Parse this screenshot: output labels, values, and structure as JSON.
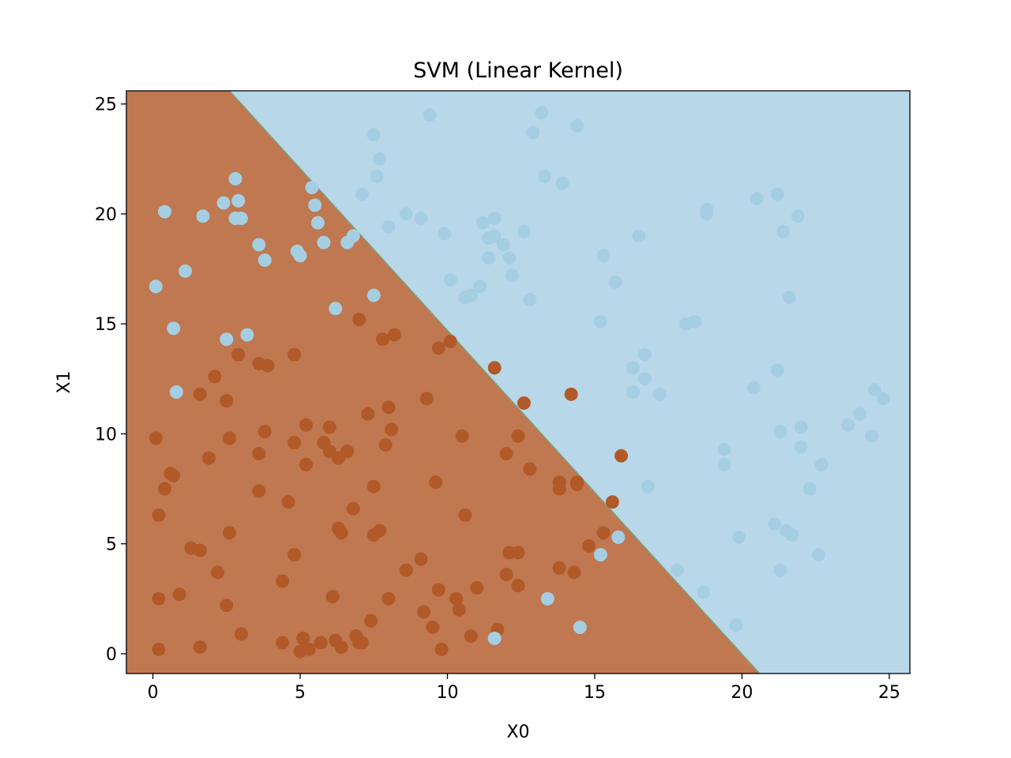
{
  "chart_data": {
    "type": "scatter",
    "title": "SVM (Linear Kernel)",
    "xlabel": "X0",
    "ylabel": "X1",
    "xlim": [
      -0.9,
      25.7
    ],
    "ylim": [
      -0.9,
      25.6
    ],
    "xticks": [
      0,
      5,
      10,
      15,
      20,
      25
    ],
    "yticks": [
      0,
      5,
      10,
      15,
      20,
      25
    ],
    "decision_boundary": {
      "points": [
        [
          2.6,
          25.6
        ],
        [
          20.6,
          -0.9
        ]
      ]
    },
    "regions": {
      "class0_color": "#bf7850",
      "class1_color": "#b8d8ea",
      "boundary_color": "#7fa07a"
    },
    "point_colors": {
      "class0": "#b15928",
      "class1": "#a6cee3"
    },
    "series": [
      {
        "class": 0,
        "points": [
          [
            0.1,
            9.8
          ],
          [
            0.2,
            6.3
          ],
          [
            0.2,
            2.5
          ],
          [
            0.2,
            0.2
          ],
          [
            0.4,
            7.5
          ],
          [
            0.6,
            8.2
          ],
          [
            0.7,
            8.1
          ],
          [
            0.9,
            2.7
          ],
          [
            1.3,
            4.8
          ],
          [
            1.6,
            4.7
          ],
          [
            1.6,
            0.3
          ],
          [
            1.6,
            11.8
          ],
          [
            1.9,
            8.9
          ],
          [
            2.1,
            12.6
          ],
          [
            2.2,
            3.7
          ],
          [
            2.5,
            2.2
          ],
          [
            2.5,
            11.5
          ],
          [
            2.6,
            9.8
          ],
          [
            2.6,
            5.5
          ],
          [
            2.9,
            13.6
          ],
          [
            3.0,
            0.9
          ],
          [
            3.6,
            13.2
          ],
          [
            3.6,
            9.1
          ],
          [
            3.6,
            7.4
          ],
          [
            3.9,
            13.1
          ],
          [
            3.8,
            10.1
          ],
          [
            4.4,
            3.3
          ],
          [
            4.4,
            0.5
          ],
          [
            4.6,
            6.9
          ],
          [
            4.8,
            9.6
          ],
          [
            4.8,
            4.5
          ],
          [
            4.8,
            13.6
          ],
          [
            5.0,
            0.1
          ],
          [
            5.1,
            0.7
          ],
          [
            5.2,
            10.4
          ],
          [
            5.2,
            8.6
          ],
          [
            5.3,
            0.2
          ],
          [
            5.7,
            0.5
          ],
          [
            5.8,
            9.6
          ],
          [
            6.0,
            10.3
          ],
          [
            6.0,
            9.2
          ],
          [
            6.1,
            2.6
          ],
          [
            6.2,
            0.6
          ],
          [
            6.3,
            5.7
          ],
          [
            6.3,
            8.9
          ],
          [
            6.4,
            5.5
          ],
          [
            6.4,
            0.3
          ],
          [
            6.6,
            9.2
          ],
          [
            6.8,
            6.6
          ],
          [
            6.9,
            0.8
          ],
          [
            7.0,
            15.2
          ],
          [
            7.0,
            0.5
          ],
          [
            7.1,
            0.5
          ],
          [
            7.3,
            10.9
          ],
          [
            7.4,
            1.5
          ],
          [
            7.5,
            7.6
          ],
          [
            7.5,
            5.4
          ],
          [
            7.7,
            5.6
          ],
          [
            7.8,
            14.3
          ],
          [
            7.9,
            9.5
          ],
          [
            8.0,
            2.5
          ],
          [
            8.0,
            11.2
          ],
          [
            8.1,
            10.2
          ],
          [
            8.2,
            14.5
          ],
          [
            8.6,
            3.8
          ],
          [
            9.1,
            4.3
          ],
          [
            9.2,
            1.9
          ],
          [
            9.3,
            11.6
          ],
          [
            9.5,
            1.2
          ],
          [
            9.6,
            7.8
          ],
          [
            9.7,
            2.9
          ],
          [
            9.7,
            13.9
          ],
          [
            9.8,
            0.2
          ],
          [
            10.1,
            14.2
          ],
          [
            10.3,
            2.5
          ],
          [
            10.4,
            2.0
          ],
          [
            10.5,
            9.9
          ],
          [
            10.6,
            6.3
          ],
          [
            10.8,
            0.8
          ],
          [
            11.0,
            3.0
          ],
          [
            11.6,
            13.0
          ],
          [
            11.7,
            1.1
          ],
          [
            12.0,
            9.1
          ],
          [
            12.0,
            3.6
          ],
          [
            12.1,
            4.6
          ],
          [
            12.4,
            4.6
          ],
          [
            12.4,
            9.9
          ],
          [
            12.4,
            3.1
          ],
          [
            12.6,
            11.4
          ],
          [
            12.8,
            8.4
          ],
          [
            13.8,
            7.8
          ],
          [
            13.8,
            7.5
          ],
          [
            13.8,
            3.9
          ],
          [
            14.2,
            11.8
          ],
          [
            14.3,
            3.7
          ],
          [
            14.4,
            7.8
          ],
          [
            14.4,
            7.7
          ],
          [
            14.8,
            4.9
          ],
          [
            15.3,
            5.5
          ],
          [
            15.6,
            6.9
          ],
          [
            15.9,
            9.0
          ]
        ]
      },
      {
        "class": 1,
        "points": [
          [
            0.1,
            16.7
          ],
          [
            0.4,
            20.1
          ],
          [
            0.7,
            14.8
          ],
          [
            0.8,
            11.9
          ],
          [
            1.1,
            17.4
          ],
          [
            1.7,
            19.9
          ],
          [
            2.4,
            20.5
          ],
          [
            2.5,
            14.3
          ],
          [
            2.8,
            21.6
          ],
          [
            2.8,
            19.8
          ],
          [
            2.9,
            20.6
          ],
          [
            3.0,
            19.8
          ],
          [
            3.2,
            14.5
          ],
          [
            3.6,
            18.6
          ],
          [
            3.8,
            17.9
          ],
          [
            4.9,
            18.3
          ],
          [
            5.0,
            18.1
          ],
          [
            5.4,
            21.2
          ],
          [
            5.5,
            20.4
          ],
          [
            5.6,
            19.6
          ],
          [
            5.8,
            18.7
          ],
          [
            6.2,
            15.7
          ],
          [
            6.6,
            18.7
          ],
          [
            6.8,
            19.0
          ],
          [
            7.1,
            20.9
          ],
          [
            7.5,
            23.6
          ],
          [
            7.5,
            16.3
          ],
          [
            7.6,
            21.7
          ],
          [
            7.7,
            22.5
          ],
          [
            8.0,
            19.4
          ],
          [
            8.6,
            20.0
          ],
          [
            9.1,
            19.8
          ],
          [
            9.4,
            24.5
          ],
          [
            9.9,
            19.1
          ],
          [
            10.1,
            17.0
          ],
          [
            10.6,
            16.2
          ],
          [
            10.8,
            16.3
          ],
          [
            11.1,
            16.7
          ],
          [
            11.2,
            19.6
          ],
          [
            11.4,
            18.9
          ],
          [
            11.4,
            18.0
          ],
          [
            11.6,
            19.8
          ],
          [
            11.6,
            19.0
          ],
          [
            11.9,
            18.6
          ],
          [
            12.1,
            18.0
          ],
          [
            12.2,
            17.2
          ],
          [
            12.6,
            19.2
          ],
          [
            12.8,
            16.1
          ],
          [
            12.9,
            23.7
          ],
          [
            13.2,
            24.6
          ],
          [
            13.3,
            21.7
          ],
          [
            13.9,
            21.4
          ],
          [
            14.4,
            24.0
          ],
          [
            15.2,
            15.1
          ],
          [
            15.3,
            18.1
          ],
          [
            15.7,
            16.9
          ],
          [
            16.3,
            13.0
          ],
          [
            16.3,
            11.9
          ],
          [
            16.5,
            19.0
          ],
          [
            16.7,
            13.6
          ],
          [
            16.7,
            12.5
          ],
          [
            16.8,
            7.6
          ],
          [
            17.2,
            11.8
          ],
          [
            17.8,
            3.8
          ],
          [
            18.1,
            15.0
          ],
          [
            18.4,
            15.1
          ],
          [
            18.7,
            2.8
          ],
          [
            18.8,
            20.0
          ],
          [
            18.8,
            20.2
          ],
          [
            19.4,
            9.3
          ],
          [
            19.4,
            8.6
          ],
          [
            19.8,
            1.3
          ],
          [
            19.9,
            5.3
          ],
          [
            20.4,
            12.1
          ],
          [
            20.5,
            20.7
          ],
          [
            21.1,
            5.9
          ],
          [
            21.2,
            20.9
          ],
          [
            21.2,
            12.9
          ],
          [
            21.3,
            3.8
          ],
          [
            21.3,
            10.1
          ],
          [
            21.4,
            19.2
          ],
          [
            21.5,
            5.6
          ],
          [
            21.6,
            16.2
          ],
          [
            21.7,
            5.4
          ],
          [
            21.9,
            19.9
          ],
          [
            22.0,
            9.4
          ],
          [
            22.0,
            10.3
          ],
          [
            22.3,
            7.5
          ],
          [
            22.6,
            4.5
          ],
          [
            22.7,
            8.6
          ],
          [
            23.6,
            10.4
          ],
          [
            24.0,
            10.9
          ],
          [
            24.4,
            9.9
          ],
          [
            24.5,
            12.0
          ],
          [
            24.8,
            11.6
          ],
          [
            11.6,
            0.7
          ],
          [
            13.4,
            2.5
          ],
          [
            14.5,
            1.2
          ],
          [
            15.2,
            4.5
          ],
          [
            15.8,
            5.3
          ]
        ]
      }
    ]
  }
}
